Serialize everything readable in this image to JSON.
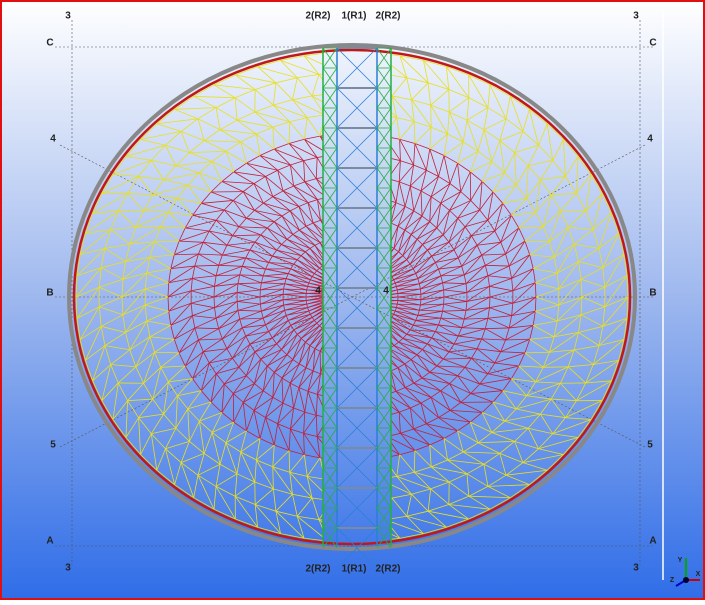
{
  "grid_labels": {
    "top_left": "3",
    "top_right": "3",
    "bottom_left": "3",
    "bottom_right": "3",
    "c_left": "C",
    "c_right": "C",
    "b_left": "B",
    "b_right": "B",
    "a_left": "A",
    "a_right": "A",
    "d4_left": "4",
    "d4_right": "4",
    "d5_left": "5",
    "d5_right": "5",
    "center_left": "4",
    "center_right": "4"
  },
  "column_labels": {
    "top": [
      "2(R2)",
      "1(R1)",
      "2(R2)"
    ],
    "bottom": [
      "2(R2)",
      "1(R1)",
      "2(R2)"
    ]
  },
  "axis_icon": {
    "x": "X",
    "y": "Y",
    "z": "Z"
  }
}
